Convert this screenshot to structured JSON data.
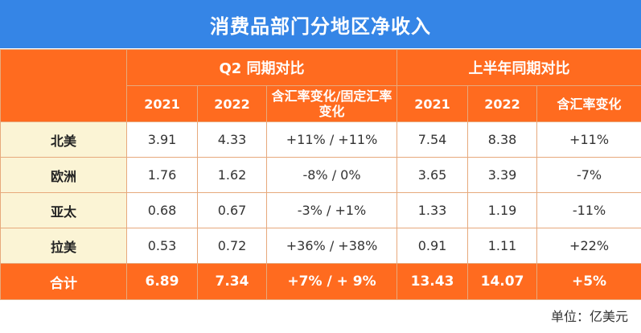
{
  "title": "消费品部门分地区净收入",
  "groups": {
    "q2": "Q2 同期对比",
    "h1": "上半年同期对比"
  },
  "subheaders": {
    "q2_2021": "2021",
    "q2_2022": "2022",
    "q2_change": "含汇率变化/固定汇率变化",
    "h1_2021": "2021",
    "h1_2022": "2022",
    "h1_change": "含汇率变化"
  },
  "rows": [
    {
      "region": "北美",
      "q2_2021": "3.91",
      "q2_2022": "4.33",
      "q2_change": "+11% / +11%",
      "h1_2021": "7.54",
      "h1_2022": "8.38",
      "h1_change": "+11%"
    },
    {
      "region": "欧洲",
      "q2_2021": "1.76",
      "q2_2022": "1.62",
      "q2_change": "-8% / 0%",
      "h1_2021": "3.65",
      "h1_2022": "3.39",
      "h1_change": "-7%"
    },
    {
      "region": "亚太",
      "q2_2021": "0.68",
      "q2_2022": "0.67",
      "q2_change": "-3% / +1%",
      "h1_2021": "1.33",
      "h1_2022": "1.19",
      "h1_change": "-11%"
    },
    {
      "region": "拉美",
      "q2_2021": "0.53",
      "q2_2022": "0.72",
      "q2_change": "+36% / +38%",
      "h1_2021": "0.91",
      "h1_2022": "1.11",
      "h1_change": "+22%"
    }
  ],
  "total": {
    "region": "合计",
    "q2_2021": "6.89",
    "q2_2022": "7.34",
    "q2_change": "+7% / + 9%",
    "h1_2021": "13.43",
    "h1_2022": "14.07",
    "h1_change": "+5%"
  },
  "unit": "单位：亿美元",
  "colors": {
    "title_bg": "#3585e6",
    "header_bg": "#ff6b1f",
    "label_bg": "#fbf4d5",
    "positive": "#2e73c4",
    "negative": "#e02020"
  }
}
